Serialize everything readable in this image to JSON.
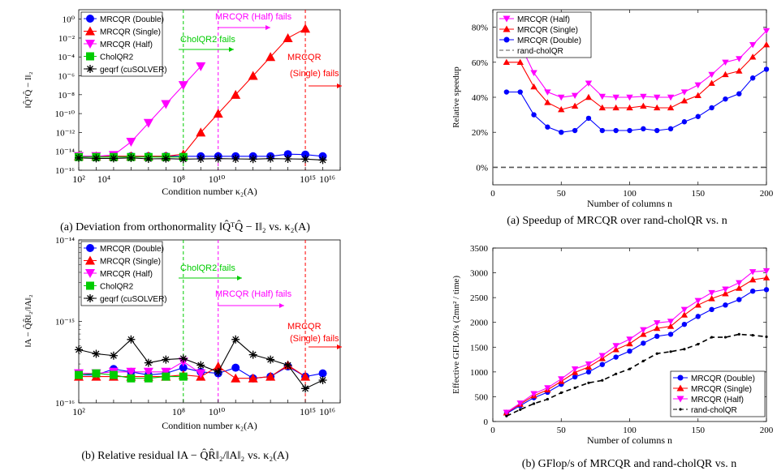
{
  "chart_data": [
    {
      "id": "a_left",
      "type": "line",
      "scale": "log-log",
      "xlabel": "Condition number κ₂(A)",
      "ylabel": "‖Q̂ᵀQ̂ − I‖₂",
      "xlim": [
        100.0,
        1e+17
      ],
      "ylim": [
        1e-16,
        10.0
      ],
      "xticks": [
        "10²",
        "10⁴",
        "10⁸",
        "10¹⁰",
        "10¹⁵",
        "10¹⁶"
      ],
      "yticks": [
        "10⁰",
        "10⁻²",
        "10⁻⁴",
        "10⁻⁶",
        "10⁻⁸",
        "10⁻¹⁰",
        "10⁻¹²",
        "10⁻¹⁴",
        "10⁻¹⁶"
      ],
      "caption": "(a) Deviation from orthonormality ‖Q̂ᵀQ̂ − I‖₂ vs. κ₂(A)",
      "legend": [
        "MRCQR (Double)",
        "MRCQR (Single)",
        "MRCQR (Half)",
        "CholQR2",
        "geqrf (cuSOLVER)"
      ],
      "annotations": [
        "CholQR2 fails",
        "MRCQR (Half) fails",
        "MRCQR",
        "(Single) fails"
      ],
      "series": [
        {
          "name": "MRCQR (Double)",
          "color": "#0000ff",
          "marker": "circle",
          "x": [
            100.0,
            1000.0,
            10000.0,
            100000.0,
            1000000.0,
            10000000.0,
            100000000.0,
            1000000000.0,
            10000000000.0,
            100000000000.0,
            1000000000000.0,
            10000000000000.0,
            100000000000000.0,
            1000000000000000.0,
            1e+16
          ],
          "y": [
            3e-15,
            3e-15,
            3e-15,
            3e-15,
            3e-15,
            3e-15,
            3e-15,
            3e-15,
            3e-15,
            3e-15,
            3e-15,
            3e-15,
            5e-15,
            4.5e-15,
            3e-15
          ]
        },
        {
          "name": "MRCQR (Single)",
          "color": "#ff0000",
          "marker": "triangle-up",
          "x": [
            100.0,
            1000.0,
            10000.0,
            100000.0,
            1000000.0,
            10000000.0,
            100000000.0,
            1000000000.0,
            10000000000.0,
            100000000000.0,
            1000000000000.0,
            10000000000000.0,
            100000000000000.0,
            1000000000000000.0
          ],
          "y": [
            3e-15,
            3e-15,
            3e-15,
            3e-15,
            3e-15,
            3e-15,
            5e-15,
            1e-12,
            1e-10,
            1e-08,
            1e-06,
            0.0001,
            0.01,
            0.1
          ]
        },
        {
          "name": "MRCQR (Half)",
          "color": "#ff00ff",
          "marker": "triangle-down",
          "x": [
            100.0,
            1000.0,
            10000.0,
            100000.0,
            1000000.0,
            10000000.0,
            100000000.0,
            1000000000.0
          ],
          "y": [
            3e-15,
            3e-15,
            4e-15,
            1e-13,
            1e-11,
            1e-09,
            1e-07,
            1e-05
          ]
        },
        {
          "name": "CholQR2",
          "color": "#00cc00",
          "marker": "square",
          "x": [
            100.0,
            1000.0,
            10000.0,
            100000.0,
            1000000.0,
            10000000.0,
            100000000.0
          ],
          "y": [
            2.5e-15,
            2.5e-15,
            2.5e-15,
            2.5e-15,
            2.5e-15,
            2.5e-15,
            2.5e-15
          ]
        },
        {
          "name": "geqrf (cuSOLVER)",
          "color": "#000000",
          "marker": "asterisk",
          "x": [
            100.0,
            1000.0,
            10000.0,
            100000.0,
            1000000.0,
            10000000.0,
            100000000.0,
            1000000000.0,
            10000000000.0,
            100000000000.0,
            1000000000000.0,
            10000000000000.0,
            100000000000000.0,
            1000000000000000.0,
            1e+16
          ],
          "y": [
            2e-15,
            1.8e-15,
            1.8e-15,
            2e-15,
            1.6e-15,
            1.7e-15,
            1.5e-15,
            1.6e-15,
            1.7e-15,
            1.6e-15,
            1.5e-15,
            1.7e-15,
            1.6e-15,
            1.5e-15,
            1.2e-15
          ]
        }
      ]
    },
    {
      "id": "b_left",
      "type": "line",
      "scale": "log-log",
      "xlabel": "Condition number κ₂(A)",
      "ylabel": "‖A − Q̂R̂‖₂/‖A‖₂",
      "xlim": [
        100.0,
        1e+17
      ],
      "ylim": [
        1e-16,
        1e-14
      ],
      "xticks": [
        "10²",
        "10⁸",
        "10¹⁰",
        "10¹⁵",
        "10¹⁶"
      ],
      "yticks": [
        "10⁻¹⁴",
        "10⁻¹⁵",
        "10⁻¹⁶"
      ],
      "caption": "(b) Relative residual ‖A − Q̂R̂‖₂/‖A‖₂ vs. κ₂(A)",
      "legend": [
        "MRCQR (Double)",
        "MRCQR (Single)",
        "MRCQR (Half)",
        "CholQR2",
        "geqrf (cuSOLVER)"
      ],
      "annotations": [
        "CholQR2 fails",
        "MRCQR (Half) fails",
        "MRCQR",
        "(Single) fails"
      ],
      "series": [
        {
          "name": "MRCQR (Double)",
          "color": "#0000ff",
          "marker": "circle",
          "x": [
            100.0,
            1000.0,
            10000.0,
            100000.0,
            1000000.0,
            10000000.0,
            100000000.0,
            1000000000.0,
            10000000000.0,
            100000000000.0,
            1000000000000.0,
            10000000000000.0,
            100000000000000.0,
            1000000000000000.0,
            1e+16
          ],
          "y": [
            2.2e-16,
            2.2e-16,
            2.6e-16,
            2.4e-16,
            2.2e-16,
            2.3e-16,
            2.7e-16,
            2.4e-16,
            2.3e-16,
            2.7e-16,
            2e-16,
            2.1e-16,
            2.8e-16,
            2.1e-16,
            2.3e-16
          ]
        },
        {
          "name": "MRCQR (Single)",
          "color": "#ff0000",
          "marker": "triangle-up",
          "x": [
            100.0,
            1000.0,
            10000.0,
            100000.0,
            1000000.0,
            10000000.0,
            100000000.0,
            1000000000.0,
            10000000000.0,
            100000000000.0,
            1000000000000.0,
            10000000000000.0,
            100000000000000.0,
            1000000000000000.0
          ],
          "y": [
            2.1e-16,
            2.1e-16,
            2.1e-16,
            2.1e-16,
            2.1e-16,
            2.1e-16,
            2.2e-16,
            2.1e-16,
            2.8e-16,
            2e-16,
            2e-16,
            2.1e-16,
            2.9e-16,
            2.1e-16
          ]
        },
        {
          "name": "MRCQR (Half)",
          "color": "#ff00ff",
          "marker": "triangle-down",
          "x": [
            100.0,
            1000.0,
            10000.0,
            100000.0,
            1000000.0,
            10000000.0,
            100000000.0,
            1000000000.0
          ],
          "y": [
            2.3e-16,
            2.3e-16,
            2.4e-16,
            2.4e-16,
            2.4e-16,
            2.4e-16,
            3.2e-16,
            2.3e-16
          ]
        },
        {
          "name": "CholQR2",
          "color": "#00cc00",
          "marker": "square",
          "x": [
            100.0,
            1000.0,
            10000.0,
            100000.0,
            1000000.0,
            10000000.0,
            100000000.0
          ],
          "y": [
            2.2e-16,
            2.3e-16,
            2.2e-16,
            2e-16,
            2e-16,
            2.1e-16,
            2.1e-16
          ]
        },
        {
          "name": "geqrf (cuSOLVER)",
          "color": "#000000",
          "marker": "asterisk",
          "x": [
            100.0,
            1000.0,
            10000.0,
            100000.0,
            1000000.0,
            10000000.0,
            100000000.0,
            1000000000.0,
            10000000000.0,
            100000000000.0,
            1000000000000.0,
            10000000000000.0,
            100000000000000.0,
            1000000000000000.0,
            1e+16
          ],
          "y": [
            4.5e-16,
            4e-16,
            3.8e-16,
            6e-16,
            3.1e-16,
            3.4e-16,
            3.5e-16,
            2.9e-16,
            2.4e-16,
            6e-16,
            3.9e-16,
            3.4e-16,
            2.9e-16,
            1.5e-16,
            1.9e-16
          ]
        }
      ]
    },
    {
      "id": "a_right",
      "type": "line",
      "xlabel": "Number of columns n",
      "ylabel": "Relative speedup",
      "xlim": [
        0,
        200
      ],
      "ylim": [
        -10,
        90
      ],
      "xticks": [
        "0",
        "50",
        "100",
        "150",
        "200"
      ],
      "yticks": [
        "0%",
        "20%",
        "40%",
        "60%",
        "80%"
      ],
      "caption": "(a) Speedup of MRCQR over rand-cholQR vs. n",
      "legend": [
        "MRCQR (Half)",
        "MRCQR (Single)",
        "MRCQR (Double)",
        "rand-cholQR"
      ],
      "series": [
        {
          "name": "MRCQR (Half)",
          "color": "#ff00ff",
          "marker": "triangle-down",
          "x": [
            10,
            20,
            30,
            40,
            50,
            60,
            70,
            80,
            90,
            100,
            110,
            120,
            130,
            140,
            150,
            160,
            170,
            180,
            190,
            200
          ],
          "y": [
            71,
            70,
            54,
            43,
            40,
            41,
            48,
            40.5,
            40,
            40,
            40.5,
            40,
            40,
            43,
            47,
            53,
            60,
            62,
            70,
            78
          ]
        },
        {
          "name": "MRCQR (Single)",
          "color": "#ff0000",
          "marker": "triangle-up",
          "x": [
            10,
            20,
            30,
            40,
            50,
            60,
            70,
            80,
            90,
            100,
            110,
            120,
            130,
            140,
            150,
            160,
            170,
            180,
            190,
            200
          ],
          "y": [
            60,
            60,
            46,
            37,
            33,
            35,
            40,
            34,
            34,
            34,
            35,
            34,
            34,
            38,
            41,
            48,
            53,
            55,
            63,
            70
          ]
        },
        {
          "name": "MRCQR (Double)",
          "color": "#0000ff",
          "marker": "circle",
          "x": [
            10,
            20,
            30,
            40,
            50,
            60,
            70,
            80,
            90,
            100,
            110,
            120,
            130,
            140,
            150,
            160,
            170,
            180,
            190,
            200
          ],
          "y": [
            43,
            43,
            30,
            23,
            20,
            21,
            28,
            21,
            21,
            21,
            22,
            21,
            22,
            26,
            29,
            34,
            39,
            42,
            51,
            56
          ]
        },
        {
          "name": "rand-cholQR",
          "color": "#555555",
          "marker": "none",
          "dashed": true,
          "x": [
            0,
            200
          ],
          "y": [
            0,
            0
          ]
        }
      ]
    },
    {
      "id": "b_right",
      "type": "line",
      "xlabel": "Number of columns n",
      "ylabel": "Effective GFLOP/s (2mn² / time)",
      "xlim": [
        0,
        200
      ],
      "ylim": [
        0,
        3500
      ],
      "xticks": [
        "0",
        "50",
        "100",
        "150",
        "200"
      ],
      "yticks": [
        "0",
        "500",
        "1000",
        "1500",
        "2000",
        "2500",
        "3000",
        "3500"
      ],
      "caption": "(b) GFlop/s of MRCQR and rand-cholQR vs. n",
      "legend": [
        "MRCQR (Double)",
        "MRCQR (Single)",
        "MRCQR (Half)",
        "rand-cholQR"
      ],
      "series": [
        {
          "name": "MRCQR (Double)",
          "color": "#0000ff",
          "marker": "circle",
          "x": [
            10,
            20,
            30,
            40,
            50,
            60,
            70,
            80,
            90,
            100,
            110,
            120,
            130,
            140,
            150,
            160,
            170,
            180,
            190,
            200
          ],
          "y": [
            160,
            320,
            480,
            590,
            750,
            900,
            1000,
            1150,
            1300,
            1420,
            1580,
            1720,
            1760,
            1960,
            2120,
            2260,
            2350,
            2460,
            2630,
            2660
          ]
        },
        {
          "name": "MRCQR (Single)",
          "color": "#ff0000",
          "marker": "triangle-up",
          "x": [
            10,
            20,
            30,
            40,
            50,
            60,
            70,
            80,
            90,
            100,
            110,
            120,
            130,
            140,
            150,
            160,
            170,
            180,
            190,
            200
          ],
          "y": [
            175,
            350,
            520,
            640,
            810,
            990,
            1100,
            1270,
            1450,
            1570,
            1760,
            1880,
            1920,
            2150,
            2350,
            2480,
            2580,
            2690,
            2860,
            2900
          ]
        },
        {
          "name": "MRCQR (Half)",
          "color": "#ff00ff",
          "marker": "triangle-down",
          "x": [
            10,
            20,
            30,
            40,
            50,
            60,
            70,
            80,
            90,
            100,
            110,
            120,
            130,
            140,
            150,
            160,
            170,
            180,
            190,
            200
          ],
          "y": [
            185,
            370,
            560,
            680,
            860,
            1060,
            1160,
            1330,
            1530,
            1660,
            1850,
            1990,
            2020,
            2260,
            2440,
            2600,
            2670,
            2800,
            3020,
            3040
          ]
        },
        {
          "name": "rand-cholQR",
          "color": "#000000",
          "marker": "dot",
          "dashed": true,
          "x": [
            10,
            20,
            30,
            40,
            50,
            60,
            70,
            80,
            90,
            100,
            110,
            120,
            130,
            140,
            150,
            160,
            170,
            180,
            190,
            200
          ],
          "y": [
            110,
            240,
            360,
            450,
            580,
            680,
            780,
            830,
            960,
            1060,
            1220,
            1370,
            1410,
            1460,
            1560,
            1700,
            1700,
            1760,
            1740,
            1710
          ]
        }
      ]
    }
  ]
}
